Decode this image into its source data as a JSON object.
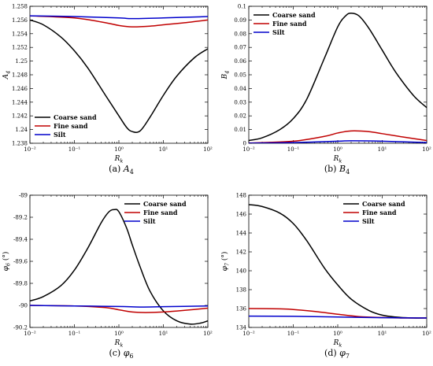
{
  "colors": {
    "coarse": "#000000",
    "fine": "#c00000",
    "silt": "#0000cc"
  },
  "chart_data": [
    {
      "type": "line",
      "caption_prefix": "(a)",
      "caption_symbol": "A",
      "caption_subscript": "4",
      "ylabel": "A",
      "ylabel_sub": "4",
      "xlabel": "R",
      "xlabel_sub": "k",
      "xscale": "log",
      "xlim": [
        0.01,
        100
      ],
      "ylim": [
        1.238,
        1.258
      ],
      "x_ticks": [
        0.01,
        0.1,
        1,
        10,
        100
      ],
      "x_tick_labels": [
        "10⁻²",
        "10⁻¹",
        "10⁰",
        "10¹",
        "10²"
      ],
      "y_ticks": [
        1.238,
        1.24,
        1.242,
        1.244,
        1.246,
        1.248,
        1.25,
        1.252,
        1.254,
        1.256,
        1.258
      ],
      "y_tick_labels": [
        "1.238",
        "1.24",
        "1.242",
        "1.244",
        "1.246",
        "1.248",
        "1.25",
        "1.252",
        "1.254",
        "1.256",
        "1.258"
      ],
      "legend_position": "bottom-left",
      "series": [
        {
          "name": "Coarse sand",
          "color": "coarse",
          "x": [
            0.01,
            0.02,
            0.05,
            0.1,
            0.2,
            0.5,
            1,
            1.5,
            2,
            3,
            5,
            10,
            20,
            50,
            100
          ],
          "y": [
            1.256,
            1.2553,
            1.2535,
            1.2515,
            1.249,
            1.245,
            1.242,
            1.2403,
            1.2397,
            1.2398,
            1.2418,
            1.245,
            1.2478,
            1.2505,
            1.2518
          ]
        },
        {
          "name": "Fine sand",
          "color": "fine",
          "x": [
            0.01,
            0.1,
            0.5,
            1,
            2,
            5,
            10,
            30,
            100
          ],
          "y": [
            1.2566,
            1.2563,
            1.2556,
            1.2552,
            1.255,
            1.2551,
            1.2553,
            1.2556,
            1.256
          ]
        },
        {
          "name": "Silt",
          "color": "silt",
          "x": [
            0.01,
            0.1,
            1,
            2,
            10,
            100
          ],
          "y": [
            1.2566,
            1.2565,
            1.2563,
            1.2562,
            1.2563,
            1.2565
          ]
        }
      ]
    },
    {
      "type": "line",
      "caption_prefix": "(b)",
      "caption_symbol": "B",
      "caption_subscript": "4",
      "ylabel": "B",
      "ylabel_sub": "4",
      "xlabel": "R",
      "xlabel_sub": "k",
      "xscale": "log",
      "xlim": [
        0.01,
        100
      ],
      "ylim": [
        0,
        0.1
      ],
      "x_ticks": [
        0.01,
        0.1,
        1,
        10,
        100
      ],
      "x_tick_labels": [
        "10⁻²",
        "10⁻¹",
        "10⁰",
        "10¹",
        "10²"
      ],
      "y_ticks": [
        0,
        0.01,
        0.02,
        0.03,
        0.04,
        0.05,
        0.06,
        0.07,
        0.08,
        0.09,
        0.1
      ],
      "y_tick_labels": [
        "0",
        "0.01",
        "0.02",
        "0.03",
        "0.04",
        "0.05",
        "0.06",
        "0.07",
        "0.08",
        "0.09",
        "0.1"
      ],
      "legend_position": "top-left",
      "series": [
        {
          "name": "Coarse sand",
          "color": "coarse",
          "x": [
            0.01,
            0.02,
            0.05,
            0.1,
            0.2,
            0.5,
            1,
            1.5,
            2,
            3,
            5,
            10,
            20,
            50,
            100
          ],
          "y": [
            0.002,
            0.004,
            0.01,
            0.018,
            0.032,
            0.062,
            0.085,
            0.093,
            0.095,
            0.093,
            0.084,
            0.068,
            0.052,
            0.035,
            0.026
          ]
        },
        {
          "name": "Fine sand",
          "color": "fine",
          "x": [
            0.01,
            0.1,
            0.5,
            1,
            2,
            5,
            10,
            30,
            100
          ],
          "y": [
            0.0002,
            0.0015,
            0.005,
            0.0075,
            0.009,
            0.0085,
            0.007,
            0.0045,
            0.002
          ]
        },
        {
          "name": "Silt",
          "color": "silt",
          "x": [
            0.01,
            0.1,
            1,
            2,
            10,
            100
          ],
          "y": [
            0.0001,
            0.0005,
            0.0015,
            0.0018,
            0.0015,
            0.0005
          ]
        }
      ]
    },
    {
      "type": "line",
      "caption_prefix": "(c)",
      "caption_symbol": "φ",
      "caption_subscript": "6",
      "ylabel": "φ",
      "ylabel_sub": "6",
      "ylabel_unit": " (°)",
      "xlabel": "R",
      "xlabel_sub": "k",
      "xscale": "log",
      "xlim": [
        0.01,
        100
      ],
      "ylim": [
        -90.2,
        -89
      ],
      "x_ticks": [
        0.01,
        0.1,
        1,
        10,
        100
      ],
      "x_tick_labels": [
        "10⁻²",
        "10⁻¹",
        "10⁰",
        "10¹",
        "10²"
      ],
      "y_ticks": [
        -90.2,
        -90,
        -89.8,
        -89.6,
        -89.4,
        -89.2,
        -89
      ],
      "y_tick_labels": [
        "-90.2",
        "-90",
        "-89.8",
        "-89.6",
        "-89.4",
        "-89.2",
        "-89"
      ],
      "legend_position": "top-right",
      "series": [
        {
          "name": "Coarse sand",
          "color": "coarse",
          "x": [
            0.01,
            0.02,
            0.05,
            0.1,
            0.2,
            0.4,
            0.6,
            0.8,
            1,
            1.5,
            2,
            3,
            5,
            10,
            20,
            40,
            70,
            100
          ],
          "y": [
            -89.96,
            -89.92,
            -89.82,
            -89.68,
            -89.48,
            -89.25,
            -89.15,
            -89.13,
            -89.15,
            -89.3,
            -89.45,
            -89.65,
            -89.87,
            -90.05,
            -90.14,
            -90.17,
            -90.16,
            -90.14
          ]
        },
        {
          "name": "Fine sand",
          "color": "fine",
          "x": [
            0.01,
            0.1,
            0.5,
            1,
            2,
            4,
            10,
            30,
            100
          ],
          "y": [
            -90.0,
            -90.005,
            -90.02,
            -90.04,
            -90.06,
            -90.065,
            -90.06,
            -90.045,
            -90.025
          ]
        },
        {
          "name": "Silt",
          "color": "silt",
          "x": [
            0.01,
            0.1,
            1,
            3,
            10,
            100
          ],
          "y": [
            -90.0,
            -90.005,
            -90.01,
            -90.015,
            -90.012,
            -90.005
          ]
        }
      ]
    },
    {
      "type": "line",
      "caption_prefix": "(d)",
      "caption_symbol": "φ",
      "caption_subscript": "7",
      "ylabel": "φ",
      "ylabel_sub": "7",
      "ylabel_unit": " (°)",
      "xlabel": "R",
      "xlabel_sub": "k",
      "xscale": "log",
      "xlim": [
        0.01,
        100
      ],
      "ylim": [
        134,
        148
      ],
      "x_ticks": [
        0.01,
        0.1,
        1,
        10,
        100
      ],
      "x_tick_labels": [
        "10⁻²",
        "10⁻¹",
        "10⁰",
        "10¹",
        "10²"
      ],
      "y_ticks": [
        134,
        136,
        138,
        140,
        142,
        144,
        146,
        148
      ],
      "y_tick_labels": [
        "134",
        "136",
        "138",
        "140",
        "142",
        "144",
        "146",
        "148"
      ],
      "legend_position": "top-right",
      "series": [
        {
          "name": "Coarse sand",
          "color": "coarse",
          "x": [
            0.01,
            0.02,
            0.05,
            0.1,
            0.2,
            0.5,
            1,
            2,
            5,
            10,
            20,
            50,
            100
          ],
          "y": [
            147.0,
            146.8,
            146.1,
            145.0,
            143.2,
            140.3,
            138.5,
            137.0,
            135.8,
            135.3,
            135.1,
            135.0,
            135.0
          ]
        },
        {
          "name": "Fine sand",
          "color": "fine",
          "x": [
            0.01,
            0.05,
            0.1,
            0.3,
            1,
            3,
            10,
            30,
            100
          ],
          "y": [
            136.0,
            135.97,
            135.9,
            135.7,
            135.4,
            135.15,
            135.05,
            135.0,
            135.0
          ]
        },
        {
          "name": "Silt",
          "color": "silt",
          "x": [
            0.01,
            0.1,
            1,
            10,
            100
          ],
          "y": [
            135.2,
            135.18,
            135.1,
            135.03,
            135.0
          ]
        }
      ]
    }
  ]
}
